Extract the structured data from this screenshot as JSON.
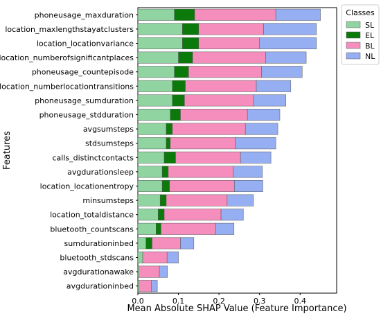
{
  "chart_data": {
    "type": "bar",
    "orientation": "horizontal",
    "stacked": true,
    "title": "",
    "xlabel": "Mean Absolute SHAP Value (Feature Importance)",
    "ylabel": "Features",
    "xlim": [
      0,
      0.49
    ],
    "xticks": [
      "0.0",
      "0.1",
      "0.2",
      "0.3",
      "0.4"
    ],
    "grid": false,
    "legend": {
      "title": "Classes",
      "position": "upper-right-outside"
    },
    "categories": [
      "phoneusage_maxduration",
      "location_maxlengthstayatclusters",
      "location_locationvariance",
      "location_numberofsignificantplaces",
      "phoneusage_countepisode",
      "location_numberlocationtransitions",
      "phoneusage_sumduration",
      "phoneusage_stdduration",
      "avgsumsteps",
      "stdsumsteps",
      "calls_distinctcontacts",
      "avgdurationsleep",
      "location_locationentropy",
      "minsumsteps",
      "location_totaldistance",
      "bluetooth_countscans",
      "sumdurationinbed",
      "bluetooth_stdscans",
      "avgdurationawake",
      "avgdurationinbed"
    ],
    "series": [
      {
        "name": "SL",
        "color": "#90d4a1",
        "values": [
          0.09,
          0.11,
          0.11,
          0.1,
          0.09,
          0.085,
          0.085,
          0.08,
          0.07,
          0.07,
          0.065,
          0.06,
          0.06,
          0.055,
          0.05,
          0.045,
          0.02,
          0.012,
          0.003,
          0.003
        ]
      },
      {
        "name": "EL",
        "color": "#0b7a0b",
        "values": [
          0.05,
          0.04,
          0.04,
          0.035,
          0.035,
          0.032,
          0.03,
          0.025,
          0.015,
          0.01,
          0.028,
          0.015,
          0.018,
          0.015,
          0.015,
          0.012,
          0.015,
          0.0,
          0.0,
          0.0
        ]
      },
      {
        "name": "BL",
        "color": "#f58ebd",
        "values": [
          0.2,
          0.16,
          0.15,
          0.18,
          0.18,
          0.175,
          0.17,
          0.165,
          0.18,
          0.16,
          0.16,
          0.16,
          0.16,
          0.15,
          0.14,
          0.135,
          0.07,
          0.06,
          0.05,
          0.03
        ]
      },
      {
        "name": "NL",
        "color": "#96aef2",
        "values": [
          0.11,
          0.13,
          0.14,
          0.1,
          0.1,
          0.085,
          0.08,
          0.08,
          0.08,
          0.1,
          0.075,
          0.072,
          0.07,
          0.065,
          0.055,
          0.045,
          0.033,
          0.028,
          0.02,
          0.015
        ]
      }
    ]
  }
}
